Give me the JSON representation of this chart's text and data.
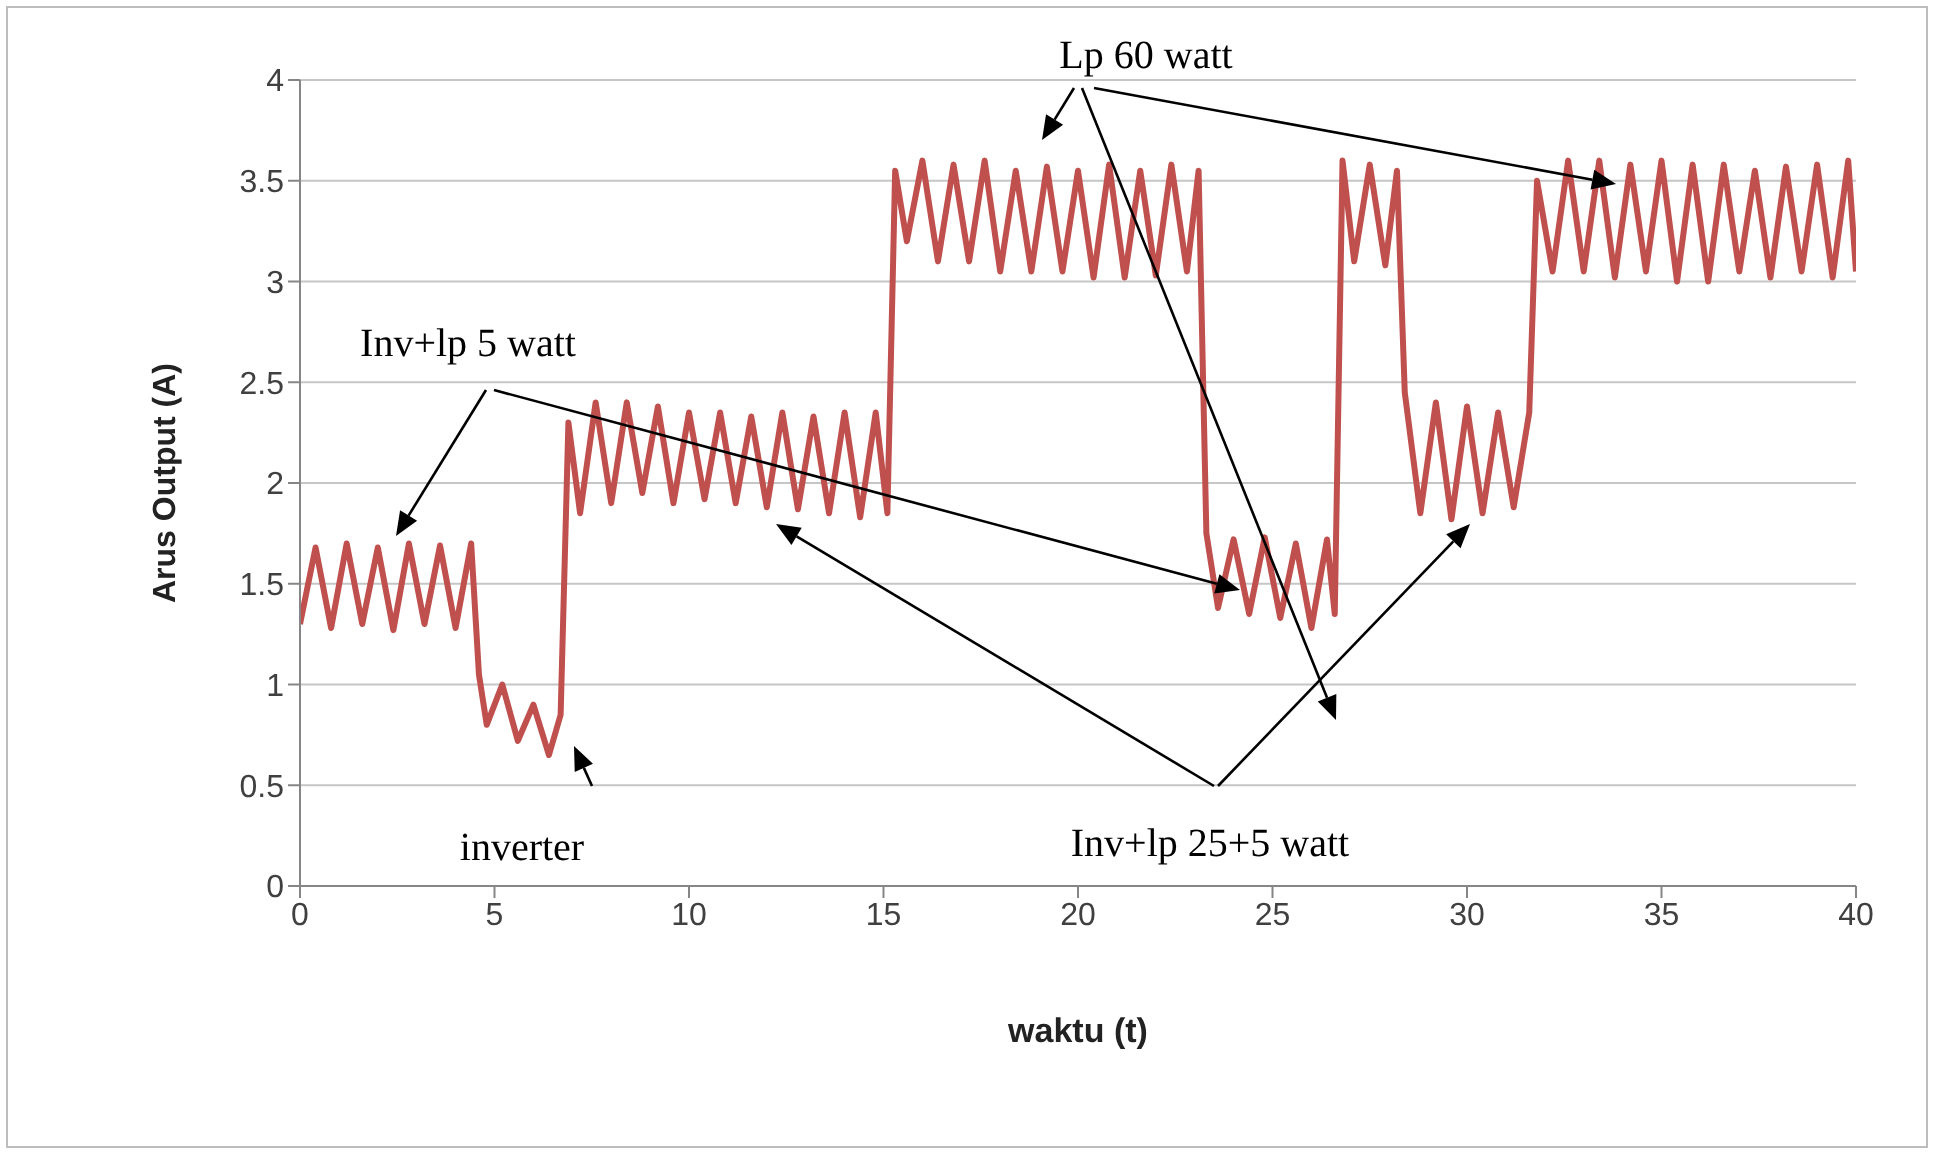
{
  "chart_data": {
    "type": "line",
    "xlabel": "waktu (t)",
    "ylabel": "Arus Output (A)",
    "xlim": [
      0,
      40
    ],
    "xticks": [
      0,
      5,
      10,
      15,
      20,
      25,
      30,
      35,
      40
    ],
    "ylim": [
      0,
      4
    ],
    "yticks": [
      0,
      0.5,
      1,
      1.5,
      2,
      2.5,
      3,
      3.5,
      4
    ],
    "grid": "y",
    "marker": "none",
    "line_style": "solid",
    "annotations": [
      "Lp 60 watt",
      "Inv+lp 5 watt",
      "inverter",
      "Inv+lp 25+5 watt"
    ],
    "x": [
      0,
      0.4,
      0.8,
      1.2,
      1.6,
      2.0,
      2.4,
      2.8,
      3.2,
      3.6,
      4.0,
      4.4,
      4.6,
      4.8,
      5.2,
      5.6,
      6.0,
      6.4,
      6.7,
      6.9,
      7.2,
      7.6,
      8.0,
      8.4,
      8.8,
      9.2,
      9.6,
      10.0,
      10.4,
      10.8,
      11.2,
      11.6,
      12.0,
      12.4,
      12.8,
      13.2,
      13.6,
      14.0,
      14.4,
      14.8,
      15.1,
      15.3,
      15.6,
      16.0,
      16.4,
      16.8,
      17.2,
      17.6,
      18.0,
      18.4,
      18.8,
      19.2,
      19.6,
      20.0,
      20.4,
      20.8,
      21.2,
      21.6,
      22.0,
      22.4,
      22.8,
      23.1,
      23.3,
      23.6,
      24.0,
      24.4,
      24.8,
      25.2,
      25.6,
      26.0,
      26.4,
      26.6,
      26.8,
      27.1,
      27.5,
      27.9,
      28.2,
      28.4,
      28.8,
      29.2,
      29.6,
      30.0,
      30.4,
      30.8,
      31.2,
      31.6,
      31.8,
      32.2,
      32.6,
      33.0,
      33.4,
      33.8,
      34.2,
      34.6,
      35.0,
      35.4,
      35.8,
      36.2,
      36.6,
      37.0,
      37.4,
      37.8,
      38.2,
      38.6,
      39.0,
      39.4,
      39.8,
      40
    ],
    "series": [
      {
        "color": "#c0504d",
        "values": [
          1.3,
          1.68,
          1.28,
          1.7,
          1.3,
          1.68,
          1.27,
          1.7,
          1.3,
          1.69,
          1.28,
          1.7,
          1.05,
          0.8,
          1.0,
          0.72,
          0.9,
          0.65,
          0.85,
          2.3,
          1.85,
          2.4,
          1.9,
          2.4,
          1.95,
          2.38,
          1.9,
          2.35,
          1.92,
          2.35,
          1.9,
          2.33,
          1.88,
          2.35,
          1.87,
          2.33,
          1.85,
          2.35,
          1.83,
          2.35,
          1.85,
          3.55,
          3.2,
          3.6,
          3.1,
          3.58,
          3.1,
          3.6,
          3.05,
          3.55,
          3.05,
          3.57,
          3.05,
          3.55,
          3.02,
          3.58,
          3.02,
          3.55,
          3.03,
          3.58,
          3.05,
          3.55,
          1.75,
          1.38,
          1.72,
          1.35,
          1.73,
          1.33,
          1.7,
          1.28,
          1.72,
          1.35,
          3.6,
          3.1,
          3.58,
          3.08,
          3.55,
          2.45,
          1.85,
          2.4,
          1.82,
          2.38,
          1.85,
          2.35,
          1.88,
          2.35,
          3.5,
          3.05,
          3.6,
          3.05,
          3.6,
          3.02,
          3.58,
          3.05,
          3.6,
          3.0,
          3.58,
          3.0,
          3.58,
          3.05,
          3.55,
          3.02,
          3.57,
          3.05,
          3.58,
          3.02,
          3.6,
          3.05
        ]
      }
    ]
  }
}
